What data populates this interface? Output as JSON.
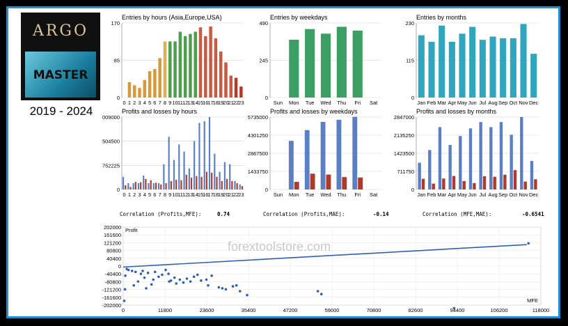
{
  "logo": {
    "title": "ARGO",
    "subtitle": "MASTER"
  },
  "years": "2019 - 2024",
  "watermark": "forextoolstore.com",
  "correlations": [
    {
      "label": "Correlation (Profits,MFE):",
      "value": "0.74"
    },
    {
      "label": "Correlation (Profits,MAE):",
      "value": "-0.14"
    },
    {
      "label": "Correlation (MFE,MAE):",
      "value": "-0.6541"
    }
  ],
  "chart_data": [
    {
      "id": "eh",
      "type": "bar",
      "title": "Entries by hours (Asia,Europe,USA)",
      "categories": [
        "0",
        "1",
        "2",
        "3",
        "4",
        "5",
        "6",
        "7",
        "8",
        "9",
        "10",
        "11",
        "12",
        "13",
        "14",
        "15",
        "16",
        "17",
        "18",
        "19",
        "20",
        "21",
        "22",
        "23"
      ],
      "values": [
        0,
        35,
        28,
        22,
        40,
        60,
        65,
        90,
        128,
        128,
        128,
        150,
        140,
        145,
        150,
        160,
        140,
        162,
        135,
        105,
        80,
        50,
        45,
        25
      ],
      "colors": [
        "#d49a3a",
        "#d49a3a",
        "#d49a3a",
        "#d49a3a",
        "#d49a3a",
        "#d49a3a",
        "#d49a3a",
        "#d49a3a",
        "#e0b050",
        "#4e9e4e",
        "#4e9e4e",
        "#4e9e4e",
        "#4e9e4e",
        "#4e9e4e",
        "#4e9e4e",
        "#c65a42",
        "#c65a42",
        "#c65a42",
        "#c65a42",
        "#c65a42",
        "#c65a42",
        "#c65a42",
        "#b33a2a",
        "#b33a2a"
      ],
      "yticks": [
        "170",
        "85",
        "0"
      ],
      "ymax": 170
    },
    {
      "id": "ew",
      "type": "bar",
      "title": "Entries by weekdays",
      "categories": [
        "Sun",
        "Mon",
        "Tue",
        "Wed",
        "Thu",
        "Fri",
        "Sat"
      ],
      "values": [
        0,
        380,
        450,
        420,
        465,
        440,
        0
      ],
      "colors": [
        "#3b9e62"
      ],
      "yticks": [
        "490",
        "245",
        "0"
      ],
      "ymax": 490
    },
    {
      "id": "em",
      "type": "bar",
      "title": "Entries by months",
      "categories": [
        "Jan",
        "Feb",
        "Mar",
        "Apr",
        "May",
        "Jun",
        "Jul",
        "Aug",
        "Sep",
        "Oct",
        "Nov",
        "Dec"
      ],
      "values": [
        192,
        172,
        222,
        172,
        197,
        218,
        178,
        188,
        183,
        183,
        227,
        135
      ],
      "colors": [
        "#2fa6bd"
      ],
      "yticks": [
        "230",
        "115",
        "0"
      ],
      "ymax": 230
    },
    {
      "id": "ph",
      "type": "bar2",
      "title": "Profits and losses by hours",
      "categories": [
        "0",
        "1",
        "2",
        "3",
        "4",
        "5",
        "6",
        "7",
        "8",
        "9",
        "10",
        "11",
        "12",
        "13",
        "14",
        "15",
        "16",
        "17",
        "18",
        "19",
        "20",
        "21",
        "22",
        "23"
      ],
      "profits": [
        300000,
        150000,
        150000,
        150000,
        330000,
        150000,
        150000,
        150000,
        600000,
        1250000,
        700000,
        1070000,
        900000,
        500000,
        1150000,
        1580000,
        1620000,
        1720000,
        850000,
        420000,
        650000,
        600000,
        200000,
        120000
      ],
      "losses": [
        100000,
        60000,
        180000,
        170000,
        250000,
        220000,
        160000,
        120000,
        150000,
        200000,
        230000,
        220000,
        350000,
        280000,
        320000,
        300000,
        420000,
        400000,
        300000,
        200000,
        250000,
        200000,
        150000,
        80000
      ],
      "yticks": [
        "009000",
        "504500",
        "752225",
        "0"
      ],
      "ymax": 1720000
    },
    {
      "id": "pw",
      "type": "bar2",
      "title": "Profits and losses by weekdays",
      "categories": [
        "Sun",
        "Mon",
        "Tue",
        "Wed",
        "Thu",
        "Fri",
        "Sat"
      ],
      "profits": [
        0,
        3850000,
        4700000,
        5350000,
        5520000,
        5750000,
        0
      ],
      "losses": [
        0,
        600000,
        1250000,
        1180000,
        980000,
        950000,
        0
      ],
      "yticks": [
        "5735000",
        "4301250",
        "2867500",
        "1433750",
        "0"
      ],
      "ymax": 5735000
    },
    {
      "id": "pm",
      "type": "bar2",
      "title": "Profits and losses by months",
      "categories": [
        "Jan",
        "Feb",
        "Mar",
        "Apr",
        "May",
        "Jun",
        "Jul",
        "Aug",
        "Sep",
        "Oct",
        "Nov",
        "Dec"
      ],
      "profits": [
        1050000,
        1550000,
        2450000,
        1750000,
        2100000,
        2400000,
        2650000,
        2450000,
        2650000,
        2150000,
        2847000,
        1120000
      ],
      "losses": [
        420000,
        230000,
        430000,
        530000,
        330000,
        250000,
        520000,
        500000,
        580000,
        760000,
        310000,
        400000
      ],
      "yticks": [
        "2847000",
        "2135250",
        "1423500",
        "711750",
        "0"
      ],
      "ymax": 2847000
    },
    {
      "id": "sc",
      "type": "scatter",
      "ylabel": "Profit",
      "xlabel": "MFE",
      "xticks": [
        "0",
        "11800",
        "23600",
        "35400",
        "47200",
        "59000",
        "70800",
        "82600",
        "94400",
        "106200",
        "118000"
      ],
      "yticks": [
        "202000",
        "161600",
        "121200",
        "80800",
        "40400",
        "0",
        "-40400",
        "-80800",
        "-121200",
        "-161600",
        "-202000"
      ],
      "xmax": 118000,
      "ymin": -202000,
      "ymax": 202000,
      "points": [
        [
          300,
          -180000
        ],
        [
          500,
          -120000
        ],
        [
          600,
          -50000
        ],
        [
          1000,
          -15000
        ],
        [
          1500,
          -20000
        ],
        [
          2500,
          -25000
        ],
        [
          3000,
          -100000
        ],
        [
          3500,
          -30000
        ],
        [
          4200,
          -80000
        ],
        [
          5000,
          -40000
        ],
        [
          5500,
          -25000
        ],
        [
          6000,
          -60000
        ],
        [
          6500,
          -115000
        ],
        [
          7000,
          -35000
        ],
        [
          8000,
          -95000
        ],
        [
          8500,
          -70000
        ],
        [
          9000,
          -30000
        ],
        [
          10000,
          -55000
        ],
        [
          11000,
          -45000
        ],
        [
          12000,
          -20000
        ],
        [
          12800,
          -40000
        ],
        [
          13000,
          -80000
        ],
        [
          13500,
          -75000
        ],
        [
          14500,
          -60000
        ],
        [
          15000,
          -90000
        ],
        [
          16000,
          -70000
        ],
        [
          17000,
          -85000
        ],
        [
          18000,
          -65000
        ],
        [
          19000,
          -80000
        ],
        [
          20000,
          -55000
        ],
        [
          21000,
          -45000
        ],
        [
          22000,
          -75000
        ],
        [
          23500,
          -70000
        ],
        [
          24000,
          -100000
        ],
        [
          25000,
          -50000
        ],
        [
          27000,
          -110000
        ],
        [
          28000,
          -115000
        ],
        [
          29000,
          -120000
        ],
        [
          31000,
          -105000
        ],
        [
          32000,
          -100000
        ],
        [
          33000,
          -130000
        ],
        [
          35000,
          -150000
        ],
        [
          55000,
          -130000
        ],
        [
          56000,
          -145000
        ],
        [
          93500,
          -218000
        ],
        [
          114500,
          118000
        ]
      ],
      "trend": {
        "x0": 0,
        "y0": -5000,
        "x1": 114000,
        "y1": 111000
      }
    }
  ]
}
